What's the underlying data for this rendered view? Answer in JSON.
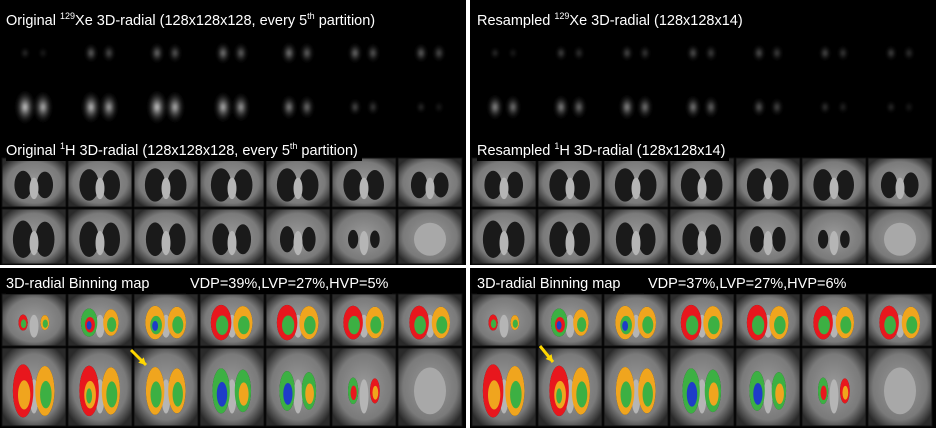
{
  "panels": {
    "xe_original": {
      "pre": "Original ",
      "sup": "129",
      "post": "Xe 3D-radial (128x128x128, every 5",
      "sup2": "th",
      "post2": " partition)"
    },
    "xe_resampled": {
      "pre": "Resampled ",
      "sup": "129",
      "post": "Xe 3D-radial (128x128x14)"
    },
    "h_original": {
      "pre": "Original ",
      "sup": "1",
      "post": "H 3D-radial (128x128x128, every 5",
      "sup2": "th",
      "post2": " partition)"
    },
    "h_resampled": {
      "pre": "Resampled ",
      "sup": "1",
      "post": "H 3D-radial (128x128x14)"
    },
    "bin_left": {
      "title": "3D-radial Binning map",
      "stats": "VDP=39%,LVP=27%,HVP=5%"
    },
    "bin_right": {
      "title": "3D-radial Binning map",
      "stats": "VDP=37%,LVP=27%,HVP=6%"
    }
  },
  "colors": {
    "defect": "#e8171d",
    "low": "#f0a51e",
    "normal": "#3cb043",
    "high": "#1e3cc8",
    "arrow": "#ffd700",
    "xe_signal": "#e8e8e8"
  }
}
